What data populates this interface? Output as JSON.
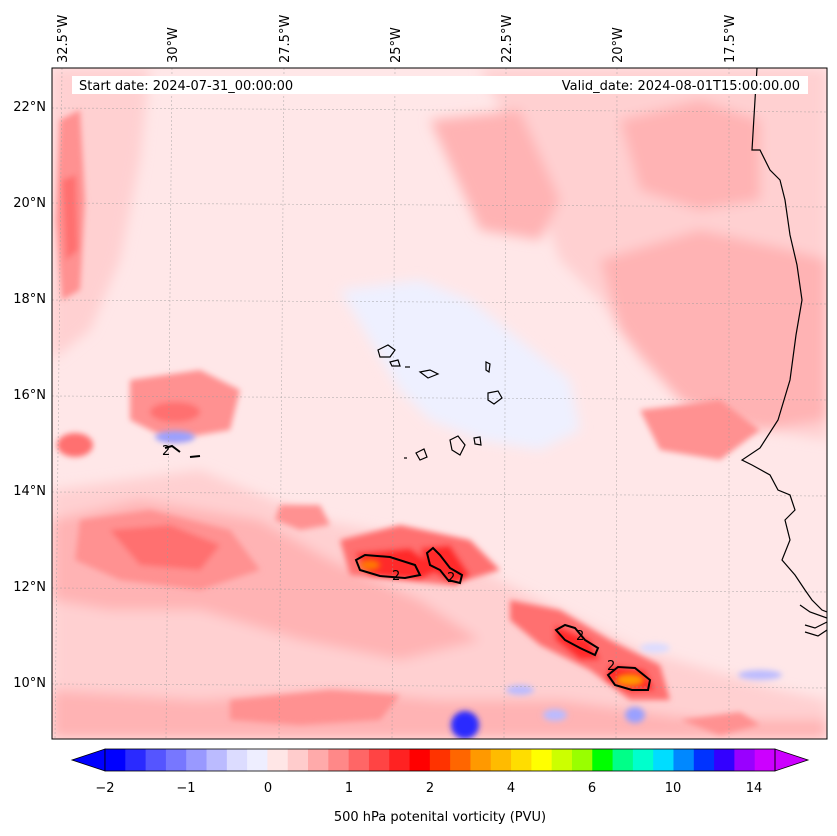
{
  "header": {
    "start_date": "Start date: 2024-07-31_00:00:00",
    "valid_date": "Valid_date: 2024-08-01T15:00:00.00"
  },
  "lon_labels": [
    "32.5°W",
    "30°W",
    "27.5°W",
    "25°W",
    "22.5°W",
    "20°W",
    "17.5°W"
  ],
  "lat_labels": [
    "22°N",
    "20°N",
    "18°N",
    "16°N",
    "14°N",
    "12°N",
    "10°N"
  ],
  "contour_labels": [
    "2",
    "2",
    "2",
    "2",
    "2"
  ],
  "colorbar": {
    "title": "500 hPa potenital vorticity (PVU)",
    "ticks": [
      "−2",
      "−1",
      "0",
      "1",
      "2",
      "4",
      "6",
      "10",
      "14"
    ],
    "colors": [
      "#0000ff",
      "#2a2aff",
      "#5555ff",
      "#7777ff",
      "#9999ff",
      "#bbbbff",
      "#dcdcff",
      "#eeeeff",
      "#ffe6e6",
      "#ffcccc",
      "#ffaaaa",
      "#ff8888",
      "#ff6666",
      "#ff4444",
      "#ff2222",
      "#ff0000",
      "#ff3300",
      "#ff6600",
      "#ff9900",
      "#ffbb00",
      "#ffdd00",
      "#ffff00",
      "#ccff00",
      "#99ff00",
      "#00ff00",
      "#00ff88",
      "#00ffcc",
      "#00ddff",
      "#0088ff",
      "#0033ff",
      "#3300ff",
      "#9900ff",
      "#cc00ff"
    ]
  },
  "palette": {
    "background": "#ffe7e8",
    "light_pink": "#ffd0d1",
    "pink": "#ffb3b4",
    "salmon": "#ff9191",
    "red": "#ff6f6f",
    "strong_red": "#ff2a2a",
    "orange": "#ff7a00",
    "light_blue": "#eef0ff",
    "blue": "#9aa0ff",
    "deep_blue": "#1a1aff",
    "coast": "#000000"
  }
}
